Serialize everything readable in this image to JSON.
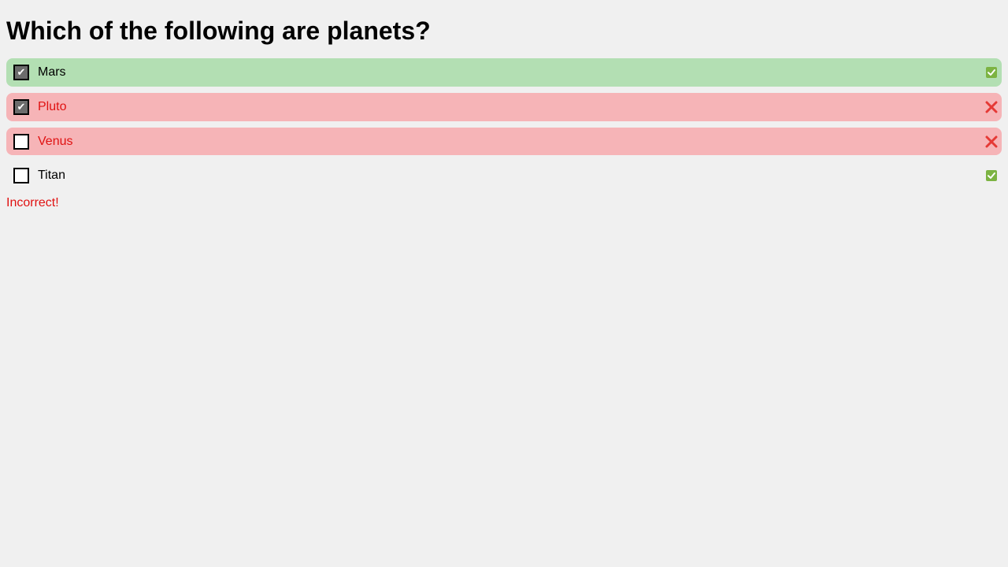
{
  "question": "Which of the following are planets?",
  "options": [
    {
      "label": "Mars",
      "checked": true,
      "state": "correct",
      "check_mark": "✔",
      "status_icon": "check-box-icon"
    },
    {
      "label": "Pluto",
      "checked": true,
      "state": "wrong",
      "check_mark": "✔",
      "status_icon": "cross-icon"
    },
    {
      "label": "Venus",
      "checked": false,
      "state": "wrong",
      "check_mark": "",
      "status_icon": "cross-icon"
    },
    {
      "label": "Titan",
      "checked": false,
      "state": "neutral",
      "check_mark": "",
      "status_icon": "check-box-icon"
    }
  ],
  "feedback": "Incorrect!",
  "colors": {
    "correct_bg": "#b3dfb3",
    "wrong_bg": "#f6b4b7",
    "error_text": "#e01212",
    "check_green": "#7cb342",
    "cross_red": "#e53935"
  }
}
